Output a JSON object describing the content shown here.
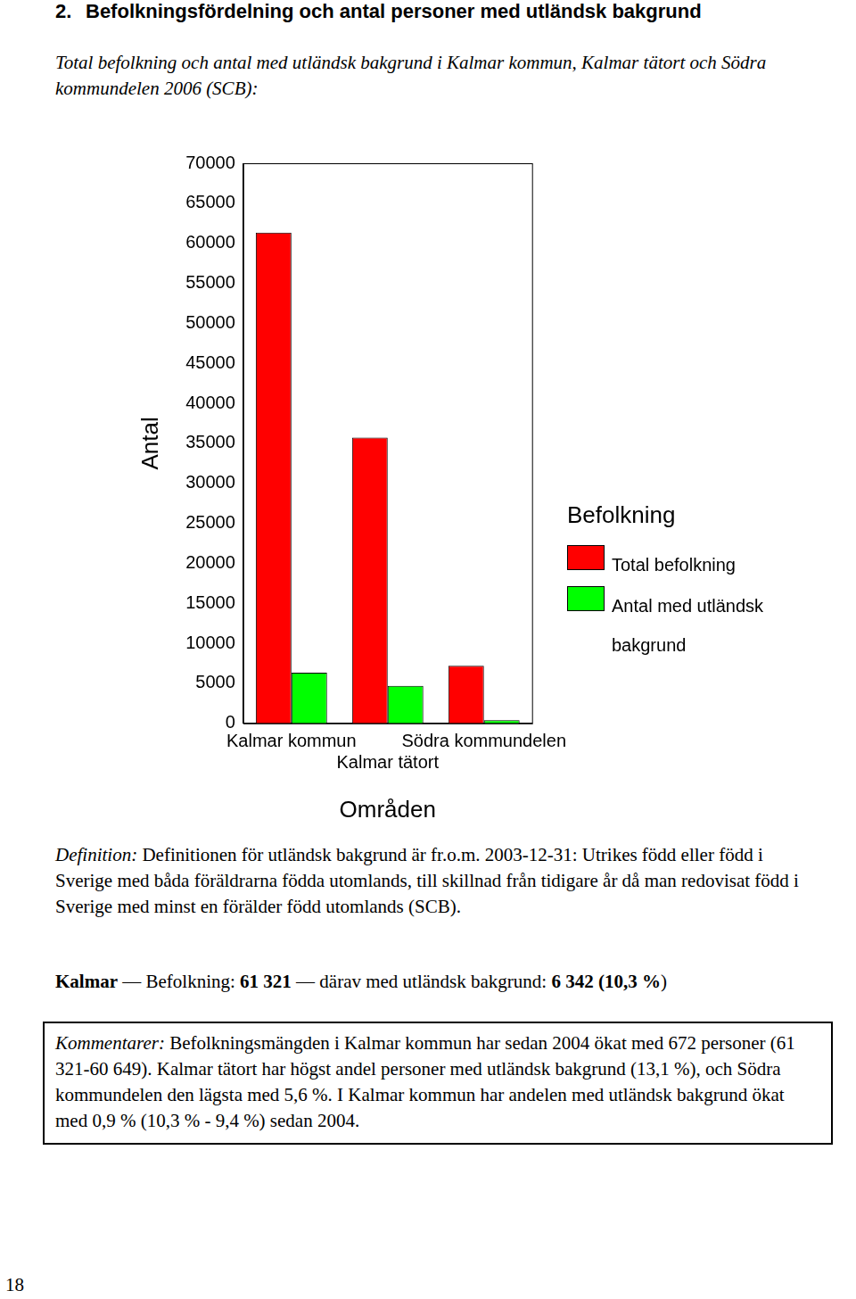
{
  "header": {
    "number": "2.",
    "title": "Befolkningsfördelning och antal personer med utländsk bakgrund"
  },
  "subtitle": "Total befolkning och antal med utländsk bakgrund i Kalmar kommun, Kalmar tätort och Södra kommundelen 2006 (SCB):",
  "chart_data": {
    "type": "bar",
    "x_label": "Områden",
    "y_label": "Antal",
    "categories": [
      "Kalmar kommun",
      "Kalmar tätort",
      "Södra kommundelen"
    ],
    "series": [
      {
        "name": "Total befolkning",
        "color": "#ff0000",
        "values": [
          61321,
          35700,
          7200
        ]
      },
      {
        "name": "Antal med utländsk bakgrund",
        "color": "#00ff00",
        "values": [
          6342,
          4680,
          400
        ]
      }
    ],
    "legend_title": "Befolkning",
    "legend": "right",
    "ylim": [
      0,
      70000
    ],
    "yticks": [
      0,
      5000,
      10000,
      15000,
      20000,
      25000,
      30000,
      35000,
      40000,
      45000,
      50000,
      55000,
      60000,
      65000,
      70000
    ],
    "grid": false
  },
  "definition": {
    "label": "Definition:",
    "text": "Definitionen för utländsk bakgrund är fr.o.m. 2003-12-31: Utrikes född eller född i Sverige med båda föräldrarna födda utomlands, till skillnad från tidigare år då man redovisat född i Sverige med minst en förälder född utomlands (SCB)."
  },
  "summary": [
    {
      "text": "Kalmar",
      "bold": true
    },
    {
      "text": " — Befolkning: ",
      "bold": false
    },
    {
      "text": "61 321",
      "bold": true
    },
    {
      "text": " — därav med utländsk bakgrund: ",
      "bold": false
    },
    {
      "text": "6 342 (10,3 %",
      "bold": true
    },
    {
      "text": ")",
      "bold": false
    }
  ],
  "comments": {
    "label": "Kommentarer:",
    "text": "Befolkningsmängden i Kalmar kommun har sedan 2004 ökat med 672 personer (61 321-60 649). Kalmar tätort har högst andel personer med utländsk bakgrund (13,1 %), och Södra kommundelen den lägsta med 5,6 %. I Kalmar kommun har andelen med utländsk bakgrund ökat med 0,9 % (10,3 % - 9,4 %) sedan 2004."
  },
  "page_number": "18"
}
